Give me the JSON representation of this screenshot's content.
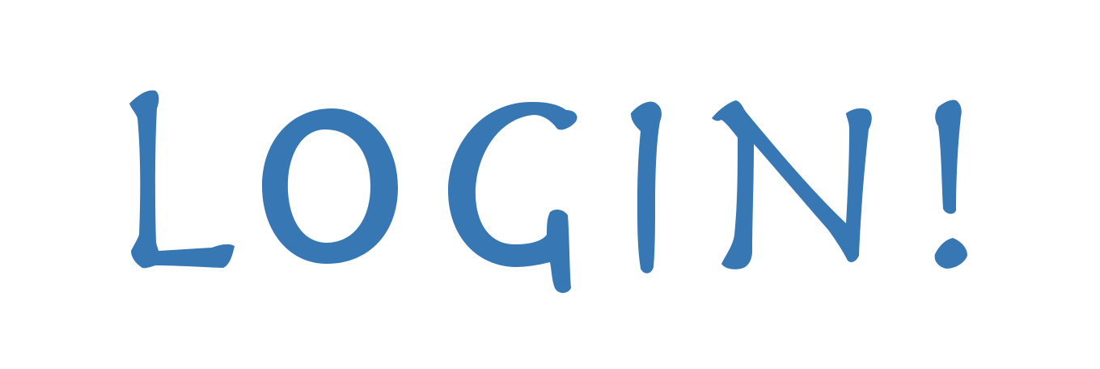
{
  "button": {
    "label": "LOGIN!",
    "color": "#3677b4"
  }
}
